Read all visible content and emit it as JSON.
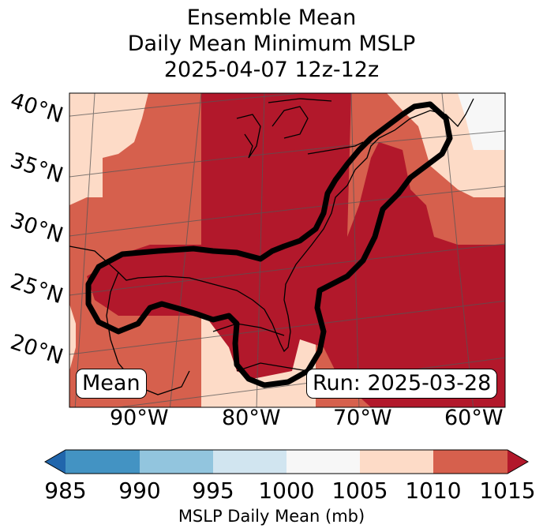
{
  "title": {
    "line1": "Ensemble Mean",
    "line2": "Daily Mean Minimum MSLP",
    "line3": "2025-04-07 12z-12z"
  },
  "map": {
    "lat_labels": [
      "40°N",
      "35°N",
      "30°N",
      "25°N",
      "20°N"
    ],
    "lon_labels": [
      "90°W",
      "80°W",
      "70°W",
      "60°W"
    ],
    "box_left": "Mean",
    "box_right": "Run: 2025-03-28"
  },
  "colorbar": {
    "label": "MSLP Daily Mean (mb)",
    "ticks": [
      "985",
      "990",
      "995",
      "1000",
      "1005",
      "1010",
      "1015"
    ],
    "colors": {
      "under": "#2166ac",
      "c985": "#4393c3",
      "c990": "#92c5de",
      "c995": "#d1e5f0",
      "c1000": "#f7f7f7",
      "c1005": "#fddbc7",
      "c1010": "#d6604d",
      "over": "#b2182b"
    }
  }
}
